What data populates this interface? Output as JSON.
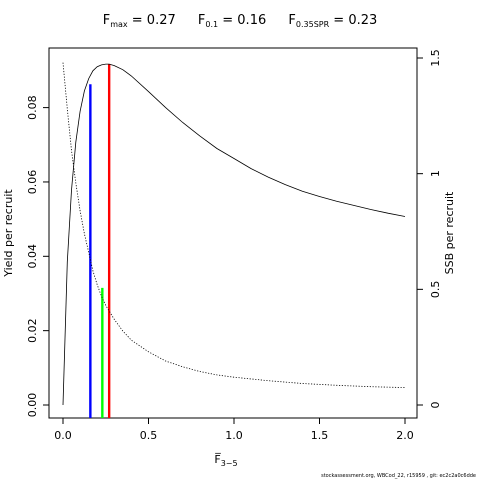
{
  "title": {
    "fmax": {
      "label": "F",
      "sub": "max",
      "value": "= 0.27"
    },
    "f01": {
      "label": "F",
      "sub": "0.1",
      "value": "= 0.16"
    },
    "f035": {
      "label": "F",
      "sub": "0.35SPR",
      "value": "= 0.23"
    }
  },
  "footer": "stockassessment.org, WBCod_22, r15959 , git: ec2c2a0c6dde",
  "chart_data": {
    "type": "line",
    "xlabel": "F̅",
    "xlabel_sub": "3−5",
    "ylabel_left": "Yield per recruit",
    "ylabel_right": "SSB per recruit",
    "xlim": [
      0,
      2
    ],
    "ylim_left": [
      0,
      0.092
    ],
    "ylim_right": [
      0,
      1.5
    ],
    "x_ticks": [
      0,
      0.5,
      1,
      1.5,
      2
    ],
    "x_tick_labels": [
      "0.0",
      "0.5",
      "1.0",
      "1.5",
      "2.0"
    ],
    "y_left_ticks": [
      0,
      0.02,
      0.04,
      0.06,
      0.08
    ],
    "y_left_tick_labels": [
      "0.00",
      "0.02",
      "0.04",
      "0.06",
      "0.08"
    ],
    "y_right_ticks": [
      0,
      0.5,
      1,
      1.5
    ],
    "y_right_tick_labels": [
      "0",
      "0.5",
      "1",
      "1.5"
    ],
    "series": [
      {
        "axis": "left",
        "style": "solid",
        "color": "#000000",
        "x": [
          0,
          0.025,
          0.05,
          0.075,
          0.1,
          0.125,
          0.15,
          0.175,
          0.2,
          0.225,
          0.25,
          0.27,
          0.3,
          0.35,
          0.4,
          0.5,
          0.6,
          0.7,
          0.8,
          0.9,
          1.0,
          1.1,
          1.2,
          1.3,
          1.4,
          1.5,
          1.6,
          1.7,
          1.8,
          1.9,
          2.0
        ],
        "y": [
          0,
          0.0385,
          0.0578,
          0.0707,
          0.079,
          0.0845,
          0.0878,
          0.0899,
          0.091,
          0.0915,
          0.0917,
          0.0917,
          0.0913,
          0.0902,
          0.0885,
          0.0843,
          0.08,
          0.076,
          0.0724,
          0.069,
          0.0663,
          0.0636,
          0.0613,
          0.0593,
          0.0575,
          0.0561,
          0.0548,
          0.0537,
          0.0526,
          0.0516,
          0.0507
        ]
      },
      {
        "axis": "right",
        "style": "dotted",
        "color": "#000000",
        "x": [
          0,
          0.025,
          0.05,
          0.075,
          0.1,
          0.125,
          0.15,
          0.175,
          0.2,
          0.225,
          0.25,
          0.3,
          0.35,
          0.4,
          0.5,
          0.6,
          0.7,
          0.8,
          0.9,
          1.0,
          1.2,
          1.4,
          1.6,
          1.8,
          2.0
        ],
        "y": [
          1.48,
          1.28,
          1.1,
          0.96,
          0.84,
          0.74,
          0.66,
          0.58,
          0.52,
          0.47,
          0.43,
          0.37,
          0.32,
          0.28,
          0.23,
          0.19,
          0.165,
          0.145,
          0.13,
          0.12,
          0.105,
          0.093,
          0.085,
          0.079,
          0.075
        ]
      }
    ],
    "ref_lines": [
      {
        "name": "F0.1",
        "x": 0.16,
        "y": 0.0863,
        "color": "#0000ff"
      },
      {
        "name": "Fmax",
        "x": 0.27,
        "y": 0.0917,
        "color": "#ff0000"
      },
      {
        "name": "F0.35SPR",
        "x": 0.23,
        "y": 0.0315,
        "color": "#00ff00"
      }
    ]
  }
}
